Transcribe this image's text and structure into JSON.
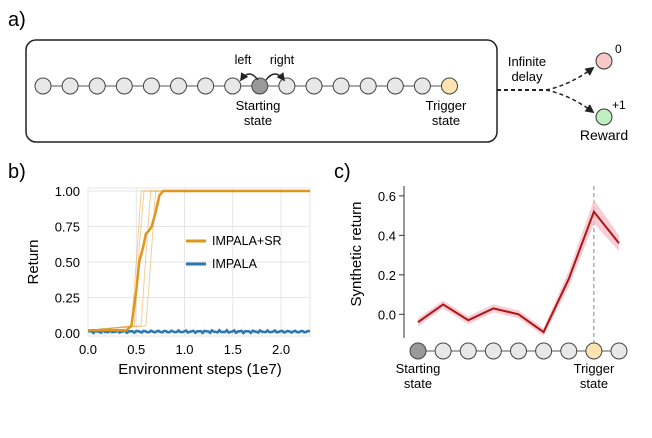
{
  "panel_a": {
    "label": "a)",
    "chain_state_count": 16,
    "starting_index": 8,
    "trigger_index": 15,
    "left_label": "left",
    "right_label": "right",
    "starting_label_line1": "Starting",
    "starting_label_line2": "state",
    "trigger_label_line1": "Trigger",
    "trigger_label_line2": "state",
    "delay_label_line1": "Infinite",
    "delay_label_line2": "delay",
    "reward_zero_value": "0",
    "reward_plus_value": "+1",
    "reward_label": "Reward",
    "colors": {
      "state": "#e8e8e8",
      "starting": "#999999",
      "trigger": "#fde3b0",
      "reward_zero": "#f6c8c8",
      "reward_plus": "#bfeec0"
    }
  },
  "chart_data": [
    {
      "panel": "b)",
      "type": "line",
      "xlabel": "Environment steps (1e7)",
      "ylabel": "Return",
      "xlim": [
        0,
        2.3
      ],
      "ylim": [
        0,
        1.0
      ],
      "x_ticks": [
        "0.0",
        "0.5",
        "1.0",
        "1.5",
        "2.0"
      ],
      "x_tick_values": [
        0,
        0.5,
        1.0,
        1.5,
        2.0
      ],
      "y_ticks": [
        "0.00",
        "0.25",
        "0.50",
        "0.75",
        "1.00"
      ],
      "y_tick_values": [
        0,
        0.25,
        0.5,
        0.75,
        1.0
      ],
      "grid": true,
      "legend_position": "center-right",
      "series": [
        {
          "name": "IMPALA+SR",
          "color": "#e0951c",
          "x": [
            0,
            0.4,
            0.45,
            0.5,
            0.53,
            0.57,
            0.6,
            0.63,
            0.66,
            0.7,
            0.74,
            0.78,
            1.0,
            1.5,
            2.0,
            2.3
          ],
          "y": [
            0.02,
            0.02,
            0.05,
            0.3,
            0.5,
            0.6,
            0.7,
            0.72,
            0.75,
            0.85,
            0.97,
            1.0,
            1.0,
            1.0,
            1.0,
            1.0
          ]
        },
        {
          "name": "IMPALA",
          "color": "#2a77b4",
          "x": [
            0,
            0.5,
            1.0,
            1.5,
            2.0,
            2.3
          ],
          "y": [
            0.01,
            0.01,
            0.01,
            0.01,
            0.01,
            0.01
          ]
        }
      ],
      "individual_runs": [
        {
          "x": [
            0,
            0.45,
            0.5,
            0.55,
            0.6,
            2.3
          ],
          "y": [
            0.02,
            0.05,
            0.5,
            1.0,
            1.0,
            1.0
          ]
        },
        {
          "x": [
            0,
            0.48,
            0.53,
            0.58,
            0.63,
            2.3
          ],
          "y": [
            0.02,
            0.05,
            0.6,
            1.0,
            1.0,
            1.0
          ]
        },
        {
          "x": [
            0,
            0.55,
            0.6,
            0.65,
            0.7,
            2.3
          ],
          "y": [
            0.02,
            0.05,
            0.55,
            1.0,
            1.0,
            1.0
          ]
        },
        {
          "x": [
            0,
            0.6,
            0.65,
            0.7,
            0.75,
            2.3
          ],
          "y": [
            0.02,
            0.05,
            0.5,
            1.0,
            1.0,
            1.0
          ]
        }
      ]
    },
    {
      "panel": "c)",
      "type": "line",
      "xlabel": "",
      "ylabel": "Synthetic return",
      "x": [
        1,
        2,
        3,
        4,
        5,
        6,
        7,
        8,
        9
      ],
      "y": [
        -0.04,
        0.05,
        -0.03,
        0.03,
        0.0,
        -0.09,
        0.18,
        0.52,
        0.36
      ],
      "band_lower": [
        -0.06,
        0.03,
        -0.05,
        0.01,
        -0.02,
        -0.11,
        0.14,
        0.46,
        0.32
      ],
      "band_upper": [
        -0.02,
        0.07,
        -0.01,
        0.05,
        0.02,
        -0.07,
        0.22,
        0.58,
        0.4
      ],
      "xlim": [
        1,
        9
      ],
      "ylim": [
        -0.12,
        0.65
      ],
      "y_ticks": [
        "0.0",
        "0.2",
        "0.4",
        "0.6"
      ],
      "y_tick_values": [
        0,
        0.2,
        0.4,
        0.6
      ],
      "color": "#b01515",
      "band_color": "#f4b8c4",
      "trigger_position": 8,
      "starting_position": 1,
      "starting_label_line1": "Starting",
      "starting_label_line2": "state",
      "trigger_label_line1": "Trigger",
      "trigger_label_line2": "state"
    }
  ],
  "panel_labels": {
    "b": "b)",
    "c": "c)"
  }
}
